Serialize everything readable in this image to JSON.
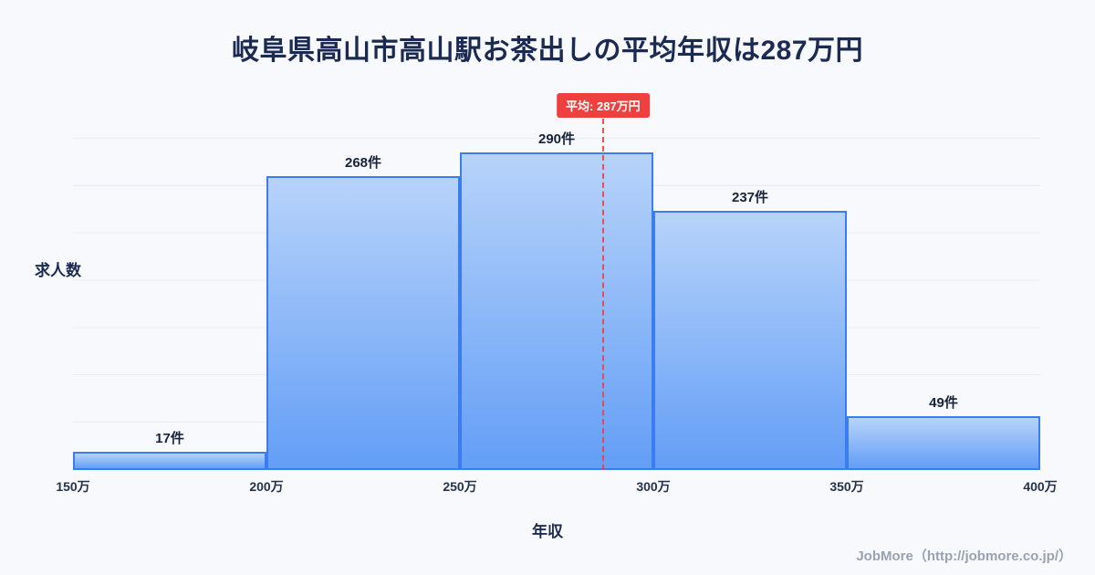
{
  "title": "岐阜県高山市高山駅お茶出しの平均年収は287万円",
  "chart_data": {
    "type": "bar",
    "title": "岐阜県高山市高山駅お茶出しの平均年収は287万円",
    "categories": [
      "150万-200万",
      "200万-250万",
      "250万-300万",
      "300万-350万",
      "350万-400万"
    ],
    "values": [
      17,
      268,
      290,
      237,
      49
    ],
    "bar_labels": [
      "17件",
      "268件",
      "290件",
      "237件",
      "49件"
    ],
    "x_ticks": [
      "150万",
      "200万",
      "250万",
      "300万",
      "350万",
      "400万"
    ],
    "x_range": [
      150,
      400
    ],
    "ylim": [
      0,
      300
    ],
    "xlabel": "年収",
    "ylabel": "求人数",
    "average_value": 287,
    "average_label": "平均: 287万円",
    "grid": "horizontal",
    "legend": "none"
  },
  "footer": {
    "credit": "JobMore（http://jobmore.co.jp/）"
  },
  "colors": {
    "background": "#f7f9fc",
    "title_text": "#1b2a52",
    "bar_border": "#3b7cf0",
    "bar_fill_top": "#b7d3fa",
    "bar_fill_bottom": "#639ef6",
    "average_red": "#ef4040",
    "footer_text": "#98a2b3",
    "grid_line": "#e8edf5",
    "axis_text": "#27324a"
  }
}
